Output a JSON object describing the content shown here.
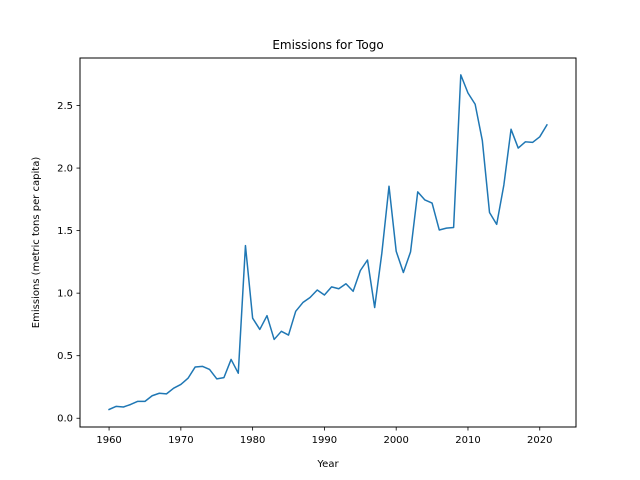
{
  "chart_data": {
    "type": "line",
    "title": "Emissions for Togo",
    "xlabel": "Year",
    "ylabel": "Emissions (metric tons per capita)",
    "xlim": [
      1955.95,
      2025.05
    ],
    "ylim": [
      -0.07,
      2.88
    ],
    "xticks": [
      1960,
      1970,
      1980,
      1990,
      2000,
      2010,
      2020
    ],
    "xtick_labels": [
      "1960",
      "1970",
      "1980",
      "1990",
      "2000",
      "2010",
      "2020"
    ],
    "yticks": [
      0.0,
      0.5,
      1.0,
      1.5,
      2.0,
      2.5
    ],
    "ytick_labels": [
      "0.0",
      "0.5",
      "1.0",
      "1.5",
      "2.0",
      "2.5"
    ],
    "grid": false,
    "series": [
      {
        "color": "#1f77b4",
        "x": [
          1960,
          1961,
          1962,
          1963,
          1964,
          1965,
          1966,
          1967,
          1968,
          1969,
          1970,
          1971,
          1972,
          1973,
          1974,
          1975,
          1976,
          1977,
          1978,
          1979,
          1980,
          1981,
          1982,
          1983,
          1984,
          1985,
          1986,
          1987,
          1988,
          1989,
          1990,
          1991,
          1992,
          1993,
          1994,
          1995,
          1996,
          1997,
          1998,
          1999,
          2000,
          2001,
          2002,
          2003,
          2004,
          2005,
          2006,
          2007,
          2008,
          2009,
          2010,
          2011,
          2012,
          2013,
          2014,
          2015,
          2016,
          2017,
          2018,
          2019,
          2020,
          2021
        ],
        "y": [
          0.07,
          0.095,
          0.09,
          0.11,
          0.135,
          0.135,
          0.18,
          0.2,
          0.195,
          0.24,
          0.27,
          0.32,
          0.41,
          0.415,
          0.39,
          0.315,
          0.325,
          0.47,
          0.36,
          1.38,
          0.8,
          0.71,
          0.82,
          0.63,
          0.695,
          0.665,
          0.855,
          0.925,
          0.965,
          1.025,
          0.985,
          1.05,
          1.035,
          1.075,
          1.015,
          1.18,
          1.265,
          0.885,
          1.32,
          1.855,
          1.335,
          1.165,
          1.33,
          1.81,
          1.745,
          1.72,
          1.505,
          1.52,
          1.525,
          2.745,
          2.6,
          2.51,
          2.22,
          1.645,
          1.55,
          1.865,
          2.31,
          2.16,
          2.21,
          2.205,
          2.25,
          2.345
        ]
      }
    ]
  }
}
